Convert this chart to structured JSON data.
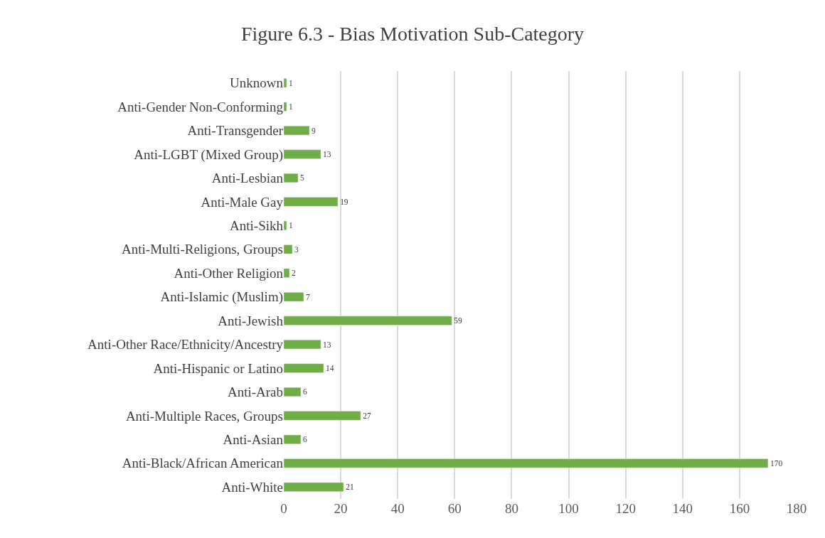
{
  "chart_data": {
    "type": "bar",
    "orientation": "horizontal",
    "title": "Figure 6.3 - Bias Motivation Sub-Category",
    "categories": [
      "Unknown",
      "Anti-Gender Non-Conforming",
      "Anti-Transgender",
      "Anti-LGBT (Mixed Group)",
      "Anti-Lesbian",
      "Anti-Male Gay",
      "Anti-Sikh",
      "Anti-Multi-Religions, Groups",
      "Anti-Other Religion",
      "Anti-Islamic (Muslim)",
      "Anti-Jewish",
      "Anti-Other Race/Ethnicity/Ancestry",
      "Anti-Hispanic or Latino",
      "Anti-Arab",
      "Anti-Multiple Races, Groups",
      "Anti-Asian",
      "Anti-Black/African American",
      "Anti-White"
    ],
    "values": [
      1,
      1,
      9,
      13,
      5,
      19,
      1,
      3,
      2,
      7,
      59,
      13,
      14,
      6,
      27,
      6,
      170,
      21
    ],
    "color": "#70ad47",
    "data_labels": true,
    "xlim": [
      0,
      180
    ],
    "xticks": [
      0,
      20,
      40,
      60,
      80,
      100,
      120,
      140,
      160,
      180
    ],
    "grid": "x",
    "legend": false
  }
}
